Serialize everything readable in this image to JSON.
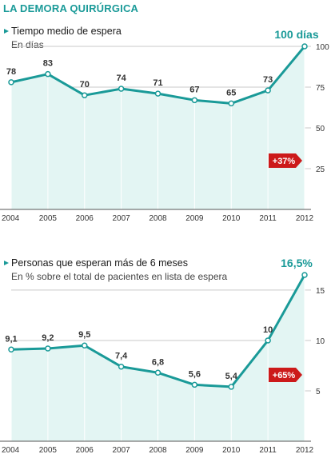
{
  "header": {
    "title": "LA DEMORA QUIRÚRGICA"
  },
  "colors": {
    "line": "#1a9a98",
    "area": "#e3f5f3",
    "badge": "#cc1a1a",
    "grid": "#c9c9c9"
  },
  "chart_data": [
    {
      "type": "area",
      "title": "Tiempo medio de espera",
      "subtitle": "En días",
      "categories": [
        "2004",
        "2005",
        "2006",
        "2007",
        "2008",
        "2009",
        "2010",
        "2011",
        "2012"
      ],
      "values": [
        78,
        83,
        70,
        74,
        71,
        67,
        65,
        73,
        100
      ],
      "labels": [
        "78",
        "83",
        "70",
        "74",
        "71",
        "67",
        "65",
        "73",
        "100 días"
      ],
      "yticks": [
        "25",
        "50",
        "75",
        "100"
      ],
      "ylim": [
        0,
        100
      ],
      "highlight_index": 8,
      "badge": "+37%",
      "grid": true
    },
    {
      "type": "area",
      "title": "Personas que esperan más de 6 meses",
      "subtitle": "En % sobre el total de pacientes en lista de espera",
      "categories": [
        "2004",
        "2005",
        "2006",
        "2007",
        "2008",
        "2009",
        "2010",
        "2011",
        "2012"
      ],
      "values": [
        9.1,
        9.2,
        9.5,
        7.4,
        6.8,
        5.6,
        5.4,
        10,
        16.5
      ],
      "labels": [
        "9,1",
        "9,2",
        "9,5",
        "7,4",
        "6,8",
        "5,6",
        "5,4",
        "10",
        "16,5%"
      ],
      "yticks": [
        "5",
        "10",
        "15"
      ],
      "ylim": [
        0,
        16.5
      ],
      "highlight_index": 8,
      "badge": "+65%",
      "grid": true
    }
  ]
}
